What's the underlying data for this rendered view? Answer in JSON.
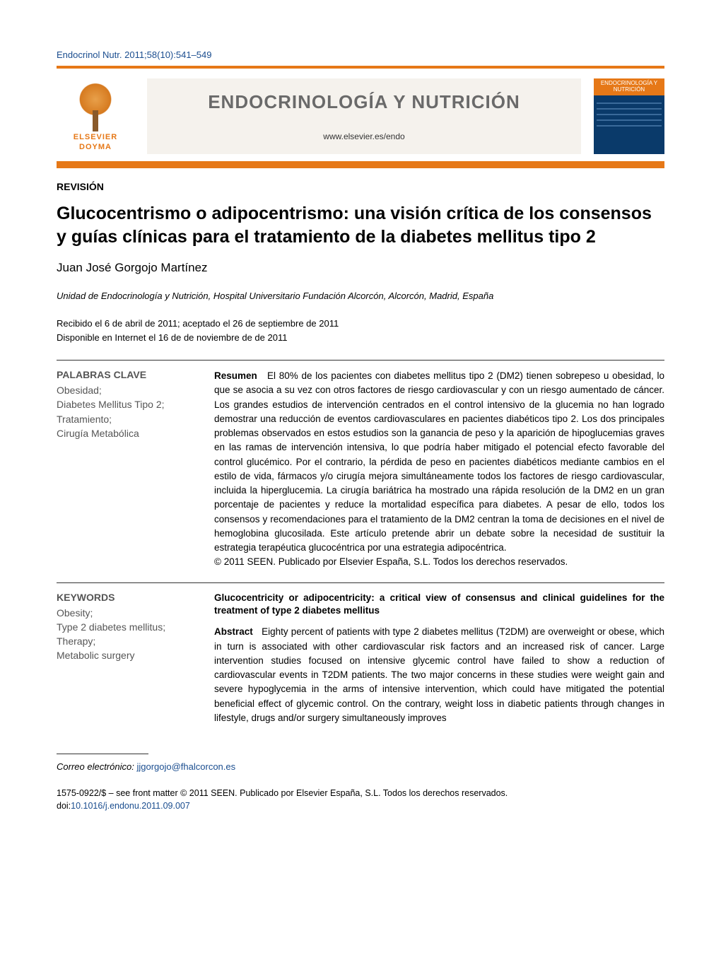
{
  "citation": "Endocrinol Nutr. 2011;58(10):541–549",
  "publisher": {
    "line1": "ELSEVIER",
    "line2": "DOYMA"
  },
  "journal": {
    "title": "ENDOCRINOLOGÍA Y NUTRICIÓN",
    "url": "www.elsevier.es/endo"
  },
  "cover": {
    "label": "ENDOCRINOLOGÍA Y NUTRICIÓN"
  },
  "article": {
    "section": "REVISIÓN",
    "title": "Glucocentrismo o adipocentrismo: una visión crítica de los consensos y guías clínicas para el tratamiento de la diabetes mellitus tipo 2",
    "author": "Juan José Gorgojo Martínez",
    "affiliation": "Unidad de Endocrinología y Nutrición, Hospital Universitario Fundación Alcorcón, Alcorcón, Madrid, España",
    "received": "Recibido el 6 de abril de 2011; aceptado el 26 de septiembre de 2011",
    "online": "Disponible en Internet el 16 de de noviembre de de 2011"
  },
  "spanish_block": {
    "kw_heading": "PALABRAS CLAVE",
    "keywords": "Obesidad;\nDiabetes Mellitus Tipo 2;\nTratamiento;\nCirugía Metabólica",
    "lead": "Resumen",
    "abstract_body": "El 80% de los pacientes con diabetes mellitus tipo 2 (DM2) tienen sobrepeso u obesidad, lo que se asocia a su vez con otros factores de riesgo cardiovascular y con un riesgo aumentado de cáncer. Los grandes estudios de intervención centrados en el control intensivo de la glucemia no han logrado demostrar una reducción de eventos cardiovasculares en pacientes diabéticos tipo 2. Los dos principales problemas observados en estos estudios son la ganancia de peso y la aparición de hipoglucemias graves en las ramas de intervención intensiva, lo que podría haber mitigado el potencial efecto favorable del control glucémico. Por el contrario, la pérdida de peso en pacientes diabéticos mediante cambios en el estilo de vida, fármacos y/o cirugía mejora simultáneamente todos los factores de riesgo cardiovascular, incluida la hiperglucemia. La cirugía bariátrica ha mostrado una rápida resolución de la DM2 en un gran porcentaje de pacientes y reduce la mortalidad específica para diabetes. A pesar de ello, todos los consensos y recomendaciones para el tratamiento de la DM2 centran la toma de decisiones en el nivel de hemoglobina glucosilada. Este artículo pretende abrir un debate sobre la necesidad de sustituir la estrategia terapéutica glucocéntrica por una estrategia adipocéntrica.",
    "copyright": "© 2011 SEEN. Publicado por Elsevier España, S.L. Todos los derechos reservados."
  },
  "english_block": {
    "kw_heading": "KEYWORDS",
    "keywords": "Obesity;\nType 2 diabetes mellitus;\nTherapy;\nMetabolic surgery",
    "title": "Glucocentricity or adipocentricity: a critical view of consensus and clinical guidelines for the treatment of type 2 diabetes mellitus",
    "lead": "Abstract",
    "abstract_body": "Eighty percent of patients with type 2 diabetes mellitus (T2DM) are overweight or obese, which in turn is associated with other cardiovascular risk factors and an increased risk of cancer. Large intervention studies focused on intensive glycemic control have failed to show a reduction of cardiovascular events in T2DM patients. The two major concerns in these studies were weight gain and severe hypoglycemia in the arms of intensive intervention, which could have mitigated the potential beneficial effect of glycemic control. On the contrary, weight loss in diabetic patients through changes in lifestyle, drugs and/or surgery simultaneously improves"
  },
  "footer": {
    "email_label": "Correo electrónico:",
    "email": "jjgorgojo@fhalcorcon.es",
    "front_matter": "1575-0922/$ – see front matter © 2011 SEEN. Publicado por Elsevier España, S.L. Todos los derechos reservados.",
    "doi_label": "doi:",
    "doi": "10.1016/j.endonu.2011.09.007"
  },
  "colors": {
    "orange": "#e67817",
    "blue_link": "#1a4d8f",
    "journal_bg": "#f5f2ed",
    "cover_bg": "#0a3a6a",
    "grey_text": "#555"
  }
}
